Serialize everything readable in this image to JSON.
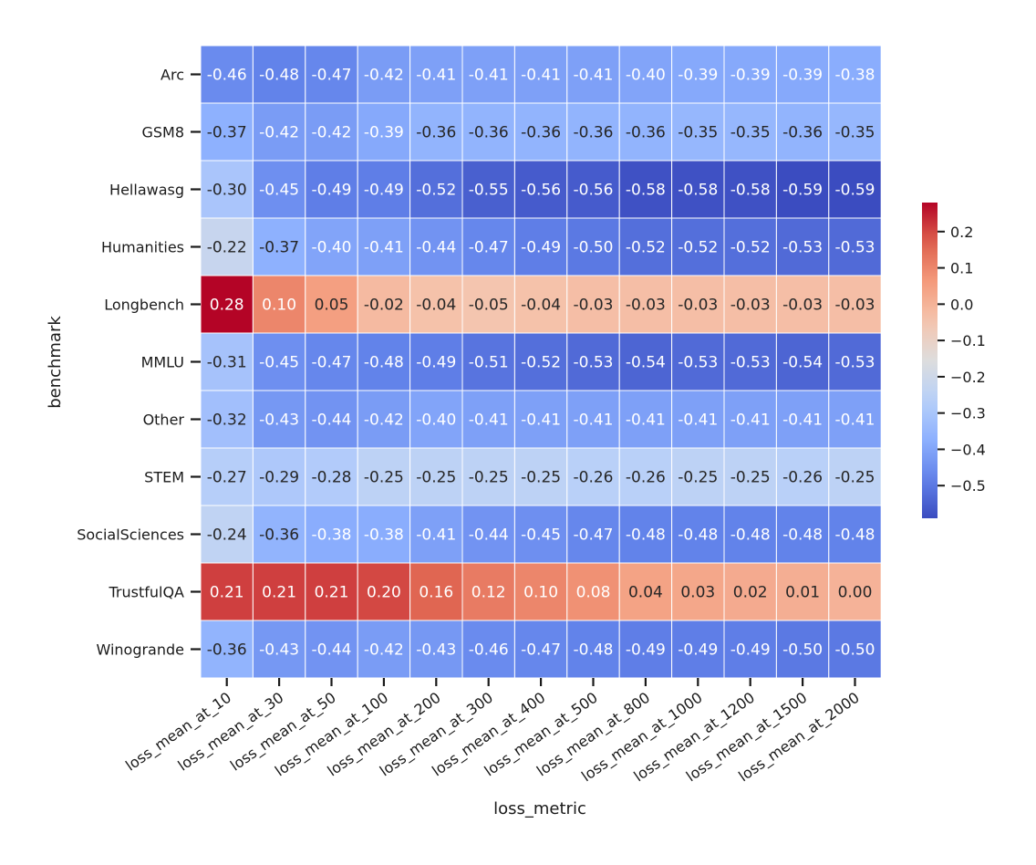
{
  "chart_data": {
    "type": "heatmap",
    "title": "",
    "xlabel": "loss_metric",
    "ylabel": "benchmark",
    "x": [
      "loss_mean_at_10",
      "loss_mean_at_30",
      "loss_mean_at_50",
      "loss_mean_at_100",
      "loss_mean_at_200",
      "loss_mean_at_300",
      "loss_mean_at_400",
      "loss_mean_at_500",
      "loss_mean_at_800",
      "loss_mean_at_1000",
      "loss_mean_at_1200",
      "loss_mean_at_1500",
      "loss_mean_at_2000"
    ],
    "y": [
      "Arc",
      "GSM8",
      "Hellawasg",
      "Humanities",
      "Longbench",
      "MMLU",
      "Other",
      "STEM",
      "SocialSciences",
      "TrustfulQA",
      "Winogrande"
    ],
    "values": [
      [
        -0.46,
        -0.48,
        -0.47,
        -0.42,
        -0.41,
        -0.41,
        -0.41,
        -0.41,
        -0.4,
        -0.39,
        -0.39,
        -0.39,
        -0.38
      ],
      [
        -0.37,
        -0.42,
        -0.42,
        -0.39,
        -0.36,
        -0.36,
        -0.36,
        -0.36,
        -0.36,
        -0.35,
        -0.35,
        -0.36,
        -0.35
      ],
      [
        -0.3,
        -0.45,
        -0.49,
        -0.49,
        -0.52,
        -0.55,
        -0.56,
        -0.56,
        -0.58,
        -0.58,
        -0.58,
        -0.59,
        -0.59
      ],
      [
        -0.22,
        -0.37,
        -0.4,
        -0.41,
        -0.44,
        -0.47,
        -0.49,
        -0.5,
        -0.52,
        -0.52,
        -0.52,
        -0.53,
        -0.53
      ],
      [
        0.28,
        0.1,
        0.05,
        -0.02,
        -0.04,
        -0.05,
        -0.04,
        -0.03,
        -0.03,
        -0.03,
        -0.03,
        -0.03,
        -0.03
      ],
      [
        -0.31,
        -0.45,
        -0.47,
        -0.48,
        -0.49,
        -0.51,
        -0.52,
        -0.53,
        -0.54,
        -0.53,
        -0.53,
        -0.54,
        -0.53
      ],
      [
        -0.32,
        -0.43,
        -0.44,
        -0.42,
        -0.4,
        -0.41,
        -0.41,
        -0.41,
        -0.41,
        -0.41,
        -0.41,
        -0.41,
        -0.41
      ],
      [
        -0.27,
        -0.29,
        -0.28,
        -0.25,
        -0.25,
        -0.25,
        -0.25,
        -0.26,
        -0.26,
        -0.25,
        -0.25,
        -0.26,
        -0.25
      ],
      [
        -0.24,
        -0.36,
        -0.38,
        -0.38,
        -0.41,
        -0.44,
        -0.45,
        -0.47,
        -0.48,
        -0.48,
        -0.48,
        -0.48,
        -0.48
      ],
      [
        0.21,
        0.21,
        0.21,
        0.2,
        0.16,
        0.12,
        0.1,
        0.08,
        0.04,
        0.03,
        0.02,
        0.01,
        0.0
      ],
      [
        -0.36,
        -0.43,
        -0.44,
        -0.42,
        -0.43,
        -0.46,
        -0.47,
        -0.48,
        -0.49,
        -0.49,
        -0.49,
        -0.5,
        -0.5
      ]
    ],
    "value_labels_format": "2 decimals",
    "colormap": "coolwarm",
    "vmin": -0.59,
    "vmax": 0.28,
    "colorbar_ticks": [
      0.2,
      0.1,
      0.0,
      -0.1,
      -0.2,
      -0.3,
      -0.4,
      -0.5
    ],
    "colorbar_tick_labels": [
      "0.2",
      "0.1",
      "0.0",
      "−0.1",
      "−0.2",
      "−0.3",
      "−0.4",
      "−0.5"
    ],
    "grid": true,
    "legend": "colorbar right"
  }
}
